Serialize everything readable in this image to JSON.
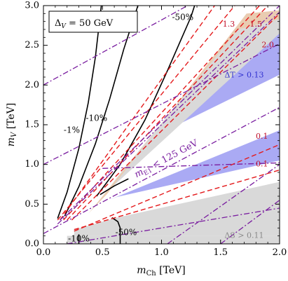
{
  "chart_data": {
    "type": "line",
    "xlabel": "m",
    "xlabel_sub": "Ch",
    "xlabel_unit": " [TeV]",
    "ylabel": "m",
    "ylabel_sub": "V",
    "ylabel_unit": " [TeV]",
    "xlim": [
      0,
      2
    ],
    "ylim": [
      0,
      3
    ],
    "x_ticks": [
      0.0,
      0.5,
      1.0,
      1.5,
      2.0
    ],
    "x_tick_labels": [
      "0.0",
      "0.5",
      "1.0",
      "1.5",
      "2.0"
    ],
    "y_ticks": [
      0.0,
      0.5,
      1.0,
      1.5,
      2.0,
      2.5,
      3.0
    ],
    "y_tick_labels": [
      "0.0",
      "0.5",
      "1.0",
      "1.5",
      "2.0",
      "2.5",
      "3.0"
    ],
    "legend_box": {
      "prefix": "Δ",
      "sub": "V",
      "suffix": " = 50 GeV"
    },
    "colors": {
      "gray_region": "#d9d9d9",
      "blue_region": "#aaaaf4",
      "tan_region": "#e9ccb1",
      "red_dashed": "#e41a1c",
      "purple_dashdot": "#7a1ea0",
      "black_contour": "#000000",
      "red_label": "#c0102a",
      "blue_label": "#3030d0",
      "gray_label": "#8a8a8a"
    },
    "regions": [
      {
        "name": "ΔS excluded (lower right)",
        "color": "gray_region",
        "points": [
          [
            0.2,
            0
          ],
          [
            2,
            0
          ],
          [
            2,
            0.1
          ],
          [
            0.2,
            0.1
          ]
        ]
      },
      {
        "name": "ΔS excluded wedge",
        "color": "gray_region",
        "points": [
          [
            0.26,
            0.1
          ],
          [
            2,
            0.1
          ],
          [
            2,
            0.78
          ],
          [
            0.62,
            0.33
          ],
          [
            0.26,
            0.18
          ]
        ]
      },
      {
        "name": "ΔT excluded (lower band)",
        "color": "blue_region",
        "points": [
          [
            0.62,
            0.59
          ],
          [
            2,
            1.05
          ],
          [
            2,
            1.43
          ],
          [
            0.55,
            0.55
          ]
        ]
      },
      {
        "name": "ΔT excluded (upper band)",
        "color": "blue_region",
        "points": [
          [
            0.96,
            1.37
          ],
          [
            2,
            2.13
          ],
          [
            2,
            2.73
          ],
          [
            1.08,
            1.61
          ],
          [
            0.7,
            0.92
          ]
        ]
      },
      {
        "name": "gray upper band",
        "color": "gray_region",
        "points": [
          [
            0.52,
            0.63
          ],
          [
            2,
            2.65
          ],
          [
            2,
            2.83
          ],
          [
            1.65,
            2.7
          ],
          [
            0.62,
            0.83
          ]
        ]
      },
      {
        "name": "tan sliver",
        "color": "tan_region",
        "points": [
          [
            0.38,
            0.38
          ],
          [
            1.65,
            2.7
          ],
          [
            2,
            2.83
          ],
          [
            2,
            2.94
          ],
          [
            1.72,
            2.9
          ],
          [
            0.54,
            0.63
          ]
        ]
      }
    ],
    "series": [
      {
        "style": "black",
        "label": "-1%",
        "points": [
          [
            0.12,
            0.32
          ],
          [
            0.2,
            0.65
          ],
          [
            0.3,
            1.2
          ],
          [
            0.38,
            1.78
          ],
          [
            0.44,
            2.35
          ],
          [
            0.49,
            3.0
          ]
        ]
      },
      {
        "style": "black",
        "label": "-10%",
        "points": [
          [
            0.18,
            0.35
          ],
          [
            0.3,
            0.72
          ],
          [
            0.44,
            1.26
          ],
          [
            0.56,
            1.82
          ],
          [
            0.68,
            2.45
          ],
          [
            0.8,
            3.0
          ]
        ]
      },
      {
        "style": "black",
        "label": "-50%",
        "points": [
          [
            0.45,
            0.6
          ],
          [
            0.65,
            1.0
          ],
          [
            0.86,
            1.56
          ],
          [
            1.05,
            2.18
          ],
          [
            1.25,
            2.86
          ],
          [
            1.28,
            3.0
          ]
        ]
      },
      {
        "style": "black",
        "label": "",
        "points": [
          [
            0.48,
            0.62
          ],
          [
            0.6,
            0.73
          ],
          [
            0.72,
            0.82
          ]
        ]
      },
      {
        "style": "black",
        "label": "-50%",
        "points": [
          [
            0.58,
            0.33
          ],
          [
            0.63,
            0.28
          ],
          [
            0.65,
            0.2
          ],
          [
            0.65,
            0.0
          ]
        ]
      },
      {
        "style": "black",
        "label": "-10%",
        "points": [
          [
            0.3,
            0.0
          ],
          [
            0.3,
            0.12
          ]
        ]
      },
      {
        "style": "red",
        "label": "1.3",
        "points": [
          [
            0.12,
            0.3
          ],
          [
            1.62,
            3.0
          ]
        ]
      },
      {
        "style": "red",
        "label": "",
        "points": [
          [
            0.14,
            0.3
          ],
          [
            1.45,
            3.0
          ]
        ]
      },
      {
        "style": "red",
        "label": "1.5",
        "points": [
          [
            0.17,
            0.3
          ],
          [
            1.83,
            3.0
          ]
        ]
      },
      {
        "style": "red",
        "label": "",
        "points": [
          [
            0.2,
            0.3
          ],
          [
            1.9,
            3.0
          ]
        ]
      },
      {
        "style": "red",
        "label": "2.0",
        "points": [
          [
            0.24,
            0.3
          ],
          [
            2.0,
            2.9
          ]
        ]
      },
      {
        "style": "red",
        "label": "0.1",
        "points": [
          [
            0.26,
            0.16
          ],
          [
            2.0,
            1.25
          ]
        ]
      },
      {
        "style": "red",
        "label": "0.1",
        "points": [
          [
            0.26,
            0.18
          ],
          [
            2.0,
            0.93
          ]
        ]
      },
      {
        "style": "purple",
        "label": "",
        "points": [
          [
            0.0,
            2.0
          ],
          [
            1.22,
            3.0
          ]
        ]
      },
      {
        "style": "purple",
        "label": "",
        "points": [
          [
            0.0,
            1.0
          ],
          [
            2.0,
            2.52
          ]
        ]
      },
      {
        "style": "purple",
        "label": "",
        "points": [
          [
            0.0,
            0.13
          ],
          [
            2.0,
            1.72
          ]
        ]
      },
      {
        "style": "purple",
        "label": "",
        "points": [
          [
            0.12,
            0.25
          ],
          [
            2.0,
            2.92
          ]
        ]
      },
      {
        "style": "purple",
        "label": "",
        "points": [
          [
            0.14,
            0.3
          ],
          [
            2.0,
            3.0
          ]
        ]
      },
      {
        "style": "purple",
        "label": "",
        "points": [
          [
            0.5,
            0.95
          ],
          [
            2.0,
            1.02
          ]
        ]
      },
      {
        "style": "purple",
        "label": "",
        "points": [
          [
            0.2,
            0.0
          ],
          [
            2.0,
            0.45
          ]
        ]
      },
      {
        "style": "purple",
        "label": "",
        "points": [
          [
            1.05,
            0.0
          ],
          [
            2.0,
            1.0
          ]
        ]
      },
      {
        "style": "purple",
        "label": "",
        "points": [
          [
            1.5,
            0.0
          ],
          [
            2.0,
            0.55
          ]
        ]
      }
    ],
    "annotations": [
      {
        "text": "-1%",
        "x": 0.24,
        "y": 1.43,
        "color": "black_contour",
        "rotate": 0,
        "size": 12
      },
      {
        "text": "-10%",
        "x": 0.45,
        "y": 1.58,
        "color": "black_contour",
        "rotate": 0,
        "size": 12
      },
      {
        "text": "-50%",
        "x": 1.18,
        "y": 2.85,
        "color": "black_contour",
        "rotate": 0,
        "size": 12
      },
      {
        "text": "-50%",
        "x": 0.7,
        "y": 0.14,
        "color": "black_contour",
        "rotate": 0,
        "size": 12
      },
      {
        "text": "-10%",
        "x": 0.3,
        "y": 0.06,
        "color": "black_contour",
        "rotate": 0,
        "size": 12
      },
      {
        "text": "1.3",
        "x": 1.57,
        "y": 2.76,
        "color": "red_label",
        "rotate": 0,
        "size": 11
      },
      {
        "text": "1.5",
        "x": 1.8,
        "y": 2.76,
        "color": "red_label",
        "rotate": 0,
        "size": 11
      },
      {
        "text": "2.0",
        "x": 1.9,
        "y": 2.5,
        "color": "red_label",
        "rotate": 0,
        "size": 11
      },
      {
        "text": "0.1",
        "x": 1.85,
        "y": 1.35,
        "color": "red_label",
        "rotate": 0,
        "size": 11
      },
      {
        "text": "0.1",
        "x": 1.85,
        "y": 1.0,
        "color": "red_label",
        "rotate": 0,
        "size": 11
      },
      {
        "text": "ΔT > 0.13",
        "x": 1.7,
        "y": 2.12,
        "color": "blue_label",
        "rotate": 0,
        "size": 11
      },
      {
        "text": "ΔS > 0.11",
        "x": 1.7,
        "y": 0.1,
        "color": "gray_label",
        "rotate": 0,
        "size": 11
      }
    ],
    "rotated_label": {
      "prefix": "m",
      "sub": "E1",
      "suffix": " < 125 GeV",
      "x": 1.05,
      "y": 1.04,
      "rotate": -28,
      "color": "purple_dashdot"
    }
  }
}
